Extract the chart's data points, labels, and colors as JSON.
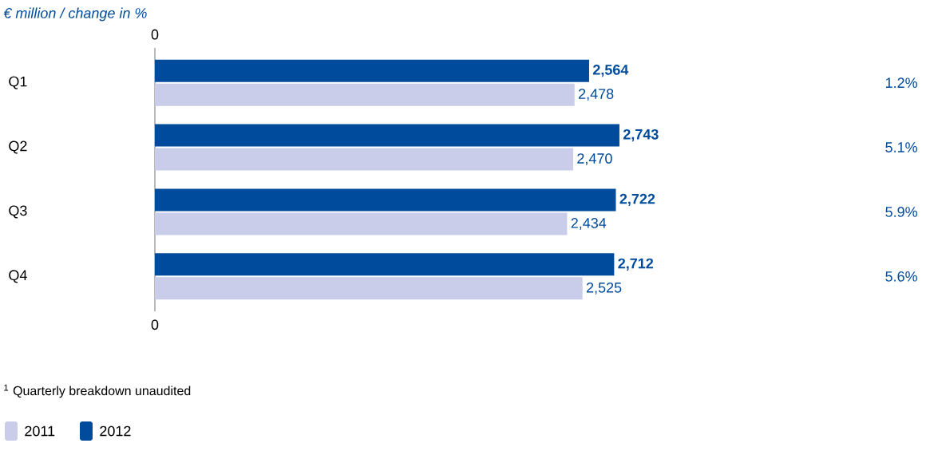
{
  "chart_data": {
    "type": "bar",
    "orientation": "horizontal",
    "title": "€ million / change in %",
    "categories": [
      "Q1",
      "Q2",
      "Q3",
      "Q4"
    ],
    "series": [
      {
        "name": "2011",
        "color": "#c9cde9",
        "values": [
          2478,
          2470,
          2434,
          2525
        ],
        "value_labels": [
          "2,478",
          "2,470",
          "2,434",
          "2,525"
        ]
      },
      {
        "name": "2012",
        "color": "#004b9b",
        "values": [
          2564,
          2743,
          2722,
          2712
        ],
        "value_labels": [
          "2,564",
          "2,743",
          "2,722",
          "2,712"
        ]
      }
    ],
    "legend": "bottom left",
    "annotations": [
      "1.2%",
      "5.1%",
      "5.9%",
      "5.6%",
      "0",
      "0",
      "$^{1}$ Quarterly breakdown unaudited"
    ]
  }
}
